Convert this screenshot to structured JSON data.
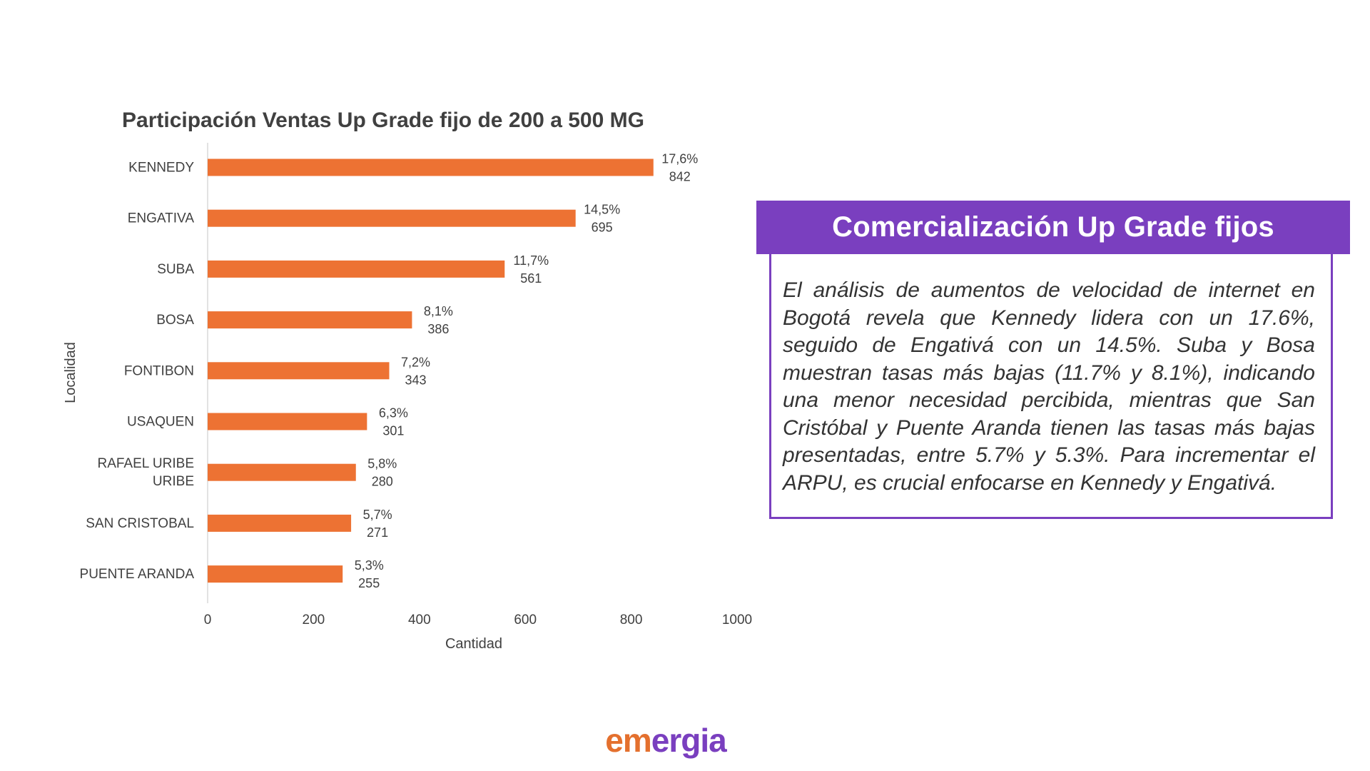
{
  "chart_data": {
    "type": "bar",
    "orientation": "horizontal",
    "title": "Participación Ventas  Up  Grade fijo  de 200 a 500 MG",
    "xlabel": "Cantidad",
    "ylabel": "Localidad",
    "xlim": [
      0,
      1000
    ],
    "xticks": [
      0,
      200,
      400,
      600,
      800,
      1000
    ],
    "categories": [
      "KENNEDY",
      "ENGATIVA",
      "SUBA",
      "BOSA",
      "FONTIBON",
      "USAQUEN",
      "RAFAEL URIBE URIBE",
      "SAN CRISTOBAL",
      "PUENTE ARANDA"
    ],
    "category_lines": [
      [
        "KENNEDY"
      ],
      [
        "ENGATIVA"
      ],
      [
        "SUBA"
      ],
      [
        "BOSA"
      ],
      [
        "FONTIBON"
      ],
      [
        "USAQUEN"
      ],
      [
        "RAFAEL URIBE",
        "URIBE"
      ],
      [
        "SAN CRISTOBAL"
      ],
      [
        "PUENTE ARANDA"
      ]
    ],
    "values": [
      842,
      695,
      561,
      386,
      343,
      301,
      280,
      271,
      255
    ],
    "percent_labels": [
      "17,6%",
      "14,5%",
      "11,7%",
      "8,1%",
      "7,2%",
      "6,3%",
      "5,8%",
      "5,7%",
      "5,3%"
    ],
    "grid": false,
    "legend": "none",
    "colors": {
      "bar": "#ed7233",
      "axis_line": "#d9d9d9"
    }
  },
  "panel": {
    "title": "Comercialización Up Grade fijos",
    "text": "El análisis de aumentos de velocidad de internet en Bogotá revela que Kennedy lidera con un 17.6%, seguido de Engativá con un 14.5%. Suba y Bosa muestran tasas más bajas (11.7% y 8.1%), indicando una menor necesidad percibida, mientras que San Cristóbal y Puente Aranda tienen  las tasas  más bajas presentadas, entre 5.7% y 5.3%. Para incrementar el ARPU, es crucial enfocarse en Kennedy y Engativá.",
    "accent_color": "#7a3fbf"
  },
  "logo": {
    "part1": "em",
    "part2": "ergia",
    "colors": [
      "#e4702e",
      "#7a3fbf"
    ]
  }
}
